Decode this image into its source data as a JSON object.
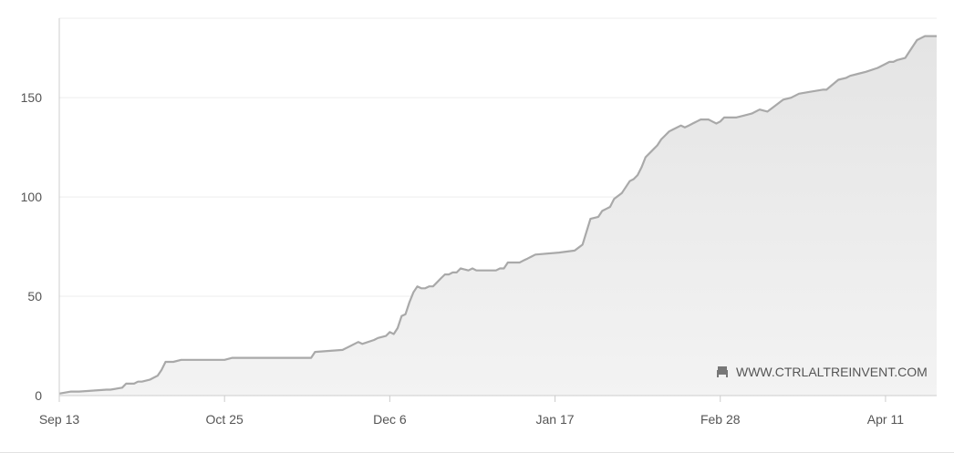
{
  "chart_data": {
    "type": "area",
    "title": "",
    "xlabel": "",
    "ylabel": "",
    "x_range": [
      "2021-09-13",
      "2022-04-24"
    ],
    "ylim": [
      0,
      190
    ],
    "y_ticks": [
      0,
      50,
      100,
      150
    ],
    "x_ticks": [
      {
        "date": "2021-09-13",
        "label": "Sep 13"
      },
      {
        "date": "2021-10-25",
        "label": "Oct 25"
      },
      {
        "date": "2021-12-06",
        "label": "Dec 6"
      },
      {
        "date": "2022-01-17",
        "label": "Jan 17"
      },
      {
        "date": "2022-02-28",
        "label": "Feb 28"
      },
      {
        "date": "2022-04-11",
        "label": "Apr 11"
      }
    ],
    "grid": {
      "horizontal": true,
      "vertical": false
    },
    "legend": "none",
    "colors": {
      "line": "#a9a9a9",
      "fill": "#e9e9e9",
      "grid": "#eeeeee",
      "axis": "#cccccc",
      "text": "#555555"
    },
    "series": [
      {
        "x": [
          "2021-09-13",
          "2021-09-16",
          "2021-09-18",
          "2021-09-25",
          "2021-09-26",
          "2021-09-29",
          "2021-09-30",
          "2021-10-02",
          "2021-10-03",
          "2021-10-04",
          "2021-10-06",
          "2021-10-07",
          "2021-10-08",
          "2021-10-09",
          "2021-10-10",
          "2021-10-12",
          "2021-10-14",
          "2021-10-25",
          "2021-10-27",
          "2021-11-16",
          "2021-11-17",
          "2021-11-24",
          "2021-11-28",
          "2021-11-29",
          "2021-12-02",
          "2021-12-03",
          "2021-12-05",
          "2021-12-06",
          "2021-12-07",
          "2021-12-08",
          "2021-12-09",
          "2021-12-10",
          "2021-12-11",
          "2021-12-12",
          "2021-12-13",
          "2021-12-14",
          "2021-12-15",
          "2021-12-16",
          "2021-12-17",
          "2021-12-18",
          "2021-12-19",
          "2021-12-20",
          "2021-12-21",
          "2021-12-22",
          "2021-12-23",
          "2021-12-24",
          "2021-12-26",
          "2021-12-27",
          "2021-12-28",
          "2022-01-02",
          "2022-01-03",
          "2022-01-04",
          "2022-01-05",
          "2022-01-08",
          "2022-01-09",
          "2022-01-10",
          "2022-01-11",
          "2022-01-12",
          "2022-01-18",
          "2022-01-22",
          "2022-01-24",
          "2022-01-26",
          "2022-01-28",
          "2022-01-29",
          "2022-01-30",
          "2022-01-31",
          "2022-02-01",
          "2022-02-03",
          "2022-02-04",
          "2022-02-05",
          "2022-02-06",
          "2022-02-07",
          "2022-02-08",
          "2022-02-09",
          "2022-02-10",
          "2022-02-11",
          "2022-02-12",
          "2022-02-13",
          "2022-02-14",
          "2022-02-15",
          "2022-02-16",
          "2022-02-18",
          "2022-02-19",
          "2022-02-20",
          "2022-02-21",
          "2022-02-22",
          "2022-02-23",
          "2022-02-24",
          "2022-02-25",
          "2022-02-26",
          "2022-02-27",
          "2022-02-28",
          "2022-03-01",
          "2022-03-02",
          "2022-03-04",
          "2022-03-06",
          "2022-03-08",
          "2022-03-10",
          "2022-03-12",
          "2022-03-14",
          "2022-03-16",
          "2022-03-18",
          "2022-03-20",
          "2022-03-23",
          "2022-03-26",
          "2022-03-27",
          "2022-03-30",
          "2022-04-01",
          "2022-04-02",
          "2022-04-04",
          "2022-04-06",
          "2022-04-09",
          "2022-04-11",
          "2022-04-12",
          "2022-04-13",
          "2022-04-14",
          "2022-04-16",
          "2022-04-17",
          "2022-04-18",
          "2022-04-19",
          "2022-04-20",
          "2022-04-21",
          "2022-04-22",
          "2022-04-23"
        ],
        "values": [
          1,
          2,
          2,
          3,
          3,
          4,
          6,
          6,
          7,
          7,
          8,
          9,
          10,
          13,
          17,
          17,
          18,
          18,
          19,
          19,
          22,
          23,
          27,
          26,
          28,
          29,
          30,
          32,
          31,
          34,
          40,
          41,
          47,
          52,
          55,
          54,
          54,
          55,
          55,
          57,
          59,
          61,
          61,
          62,
          62,
          64,
          63,
          64,
          63,
          63,
          64,
          64,
          67,
          67,
          68,
          69,
          70,
          71,
          72,
          73,
          76,
          89,
          90,
          93,
          94,
          95,
          99,
          102,
          105,
          108,
          109,
          111,
          115,
          120,
          122,
          124,
          126,
          129,
          131,
          133,
          134,
          136,
          135,
          136,
          137,
          138,
          139,
          139,
          139,
          138,
          137,
          138,
          140,
          140,
          140,
          141,
          142,
          144,
          143,
          146,
          149,
          150,
          152,
          153,
          154,
          154,
          159,
          160,
          161,
          162,
          163,
          165,
          167,
          168,
          168,
          169,
          170,
          173,
          176,
          179,
          180,
          181,
          181,
          181
        ]
      }
    ]
  },
  "watermark": {
    "text": "WWW.CTRLALTREINVENT.COM",
    "icon": "sofa-icon"
  }
}
